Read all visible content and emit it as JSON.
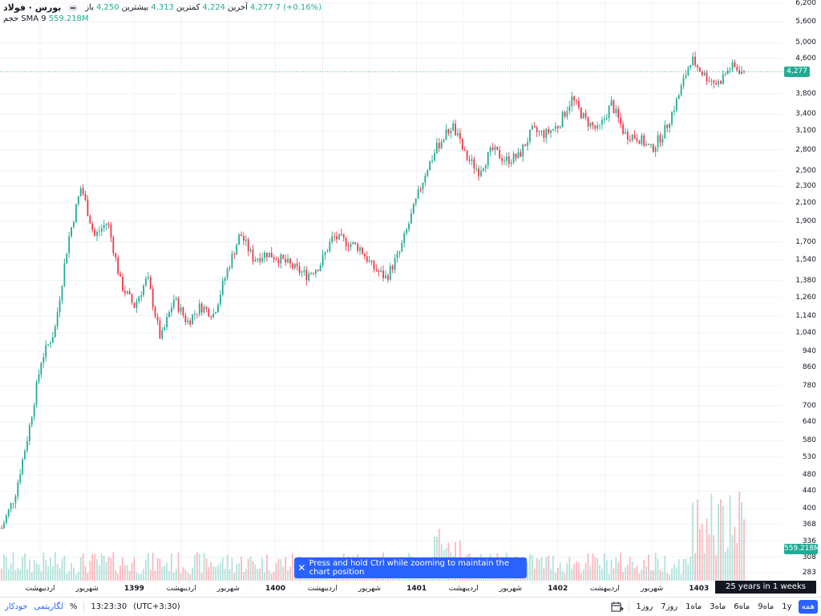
{
  "legend": {
    "symbol": "بورس · فولاد",
    "open_label": "باز",
    "open_value": "4,250",
    "high_label": "بیشترین",
    "high_value": "4,313",
    "low_label": "کمترین",
    "low_value": "4,224",
    "close_label": "آخرین",
    "close_value": "4,277",
    "change": "7 (+0.16%)",
    "volume_label": "حجم",
    "sma_label": "SMA 9",
    "sma_value": "559.218M"
  },
  "y_axis": {
    "ticks": [
      "6,200",
      "5,600",
      "5,000",
      "4,600",
      "3,800",
      "3,400",
      "3,100",
      "2,800",
      "2,500",
      "2,300",
      "2,100",
      "1,900",
      "1,700",
      "1,540",
      "1,380",
      "1,260",
      "1,140",
      "1,040",
      "940",
      "860",
      "780",
      "700",
      "640",
      "580",
      "530",
      "480",
      "440",
      "400",
      "368",
      "336",
      "308",
      "283"
    ],
    "current_price": "4,277",
    "current_volume": "559.218M"
  },
  "x_axis": {
    "labels": [
      "اردیبهشت",
      "شهریور",
      "1399",
      "اردیبهشت",
      "شهریور",
      "1400",
      "اردیبهشت",
      "شهریور",
      "1401",
      "اردیبهشت",
      "شهریور",
      "1402",
      "اردیبهشت",
      "شهریور",
      "1403"
    ],
    "year_labels": [
      "1399",
      "1400",
      "1401",
      "1402",
      "1403"
    ]
  },
  "interval_info": "25 years in 1 weeks intervals",
  "toast": {
    "message": "Press and hold Ctrl while zooming to maintain the chart position"
  },
  "bottom_bar": {
    "timezone": "(UTC+3:30)",
    "time": "13:23:30",
    "percent": "%",
    "log": "لگاریتمی",
    "auto": "خودکار",
    "timeframes": [
      "همه",
      "1y",
      "9ماه",
      "6ماه",
      "3ماه",
      "1ماه",
      "7روز",
      "1روز"
    ],
    "active_timeframe": "همه"
  },
  "colors": {
    "up": "#22ab94",
    "down": "#f23645",
    "accent": "#2962ff",
    "price_line": "#22ab94"
  },
  "icons": {
    "close": "close-icon",
    "goto_date": "calendar-goto-icon"
  },
  "chart_data": {
    "type": "candlestick",
    "scale": "log",
    "symbol": "بورس · فولاد",
    "interval": "1W",
    "last": {
      "open": 4250,
      "high": 4313,
      "low": 4224,
      "close": 4277,
      "change": 7,
      "change_pct": 0.16
    },
    "volume_sma9": "559.218M",
    "ylim": [
      283,
      6200
    ],
    "trend": [
      {
        "x": "1398-12",
        "y": 360
      },
      {
        "x": "1398-12",
        "y": 430
      },
      {
        "x": "1399-01",
        "y": 600
      },
      {
        "x": "1399-01",
        "y": 900
      },
      {
        "x": "1399-02",
        "y": 1050
      },
      {
        "x": "1399-03",
        "y": 1700
      },
      {
        "x": "1399-04",
        "y": 2300
      },
      {
        "x": "1399-04",
        "y": 1750
      },
      {
        "x": "1399-05",
        "y": 1900
      },
      {
        "x": "1399-06",
        "y": 1350
      },
      {
        "x": "1399-07",
        "y": 1200
      },
      {
        "x": "1399-08",
        "y": 1400
      },
      {
        "x": "1399-09",
        "y": 1000
      },
      {
        "x": "1399-10",
        "y": 1250
      },
      {
        "x": "1399-11",
        "y": 1100
      },
      {
        "x": "1399-12",
        "y": 1200
      },
      {
        "x": "1400-01",
        "y": 1150
      },
      {
        "x": "1400-02",
        "y": 1450
      },
      {
        "x": "1400-03",
        "y": 1780
      },
      {
        "x": "1400-04",
        "y": 1550
      },
      {
        "x": "1400-05",
        "y": 1600
      },
      {
        "x": "1400-06",
        "y": 1550
      },
      {
        "x": "1400-07",
        "y": 1480
      },
      {
        "x": "1400-08",
        "y": 1420
      },
      {
        "x": "1400-09",
        "y": 1500
      },
      {
        "x": "1400-10",
        "y": 1750
      },
      {
        "x": "1400-11",
        "y": 1700
      },
      {
        "x": "1400-12",
        "y": 1650
      },
      {
        "x": "1401-01",
        "y": 1480
      },
      {
        "x": "1401-02",
        "y": 1400
      },
      {
        "x": "1401-03",
        "y": 1600
      },
      {
        "x": "1401-04",
        "y": 2000
      },
      {
        "x": "1401-05",
        "y": 2500
      },
      {
        "x": "1401-06",
        "y": 2900
      },
      {
        "x": "1401-07",
        "y": 3200
      },
      {
        "x": "1401-08",
        "y": 2700
      },
      {
        "x": "1401-09",
        "y": 2500
      },
      {
        "x": "1401-10",
        "y": 2800
      },
      {
        "x": "1401-11",
        "y": 2650
      },
      {
        "x": "1401-12",
        "y": 2700
      },
      {
        "x": "1402-01",
        "y": 3100
      },
      {
        "x": "1402-02",
        "y": 3050
      },
      {
        "x": "1402-03",
        "y": 3200
      },
      {
        "x": "1402-04",
        "y": 3700
      },
      {
        "x": "1402-05",
        "y": 3300
      },
      {
        "x": "1402-06",
        "y": 3100
      },
      {
        "x": "1402-07",
        "y": 3600
      },
      {
        "x": "1402-08",
        "y": 3050
      },
      {
        "x": "1402-09",
        "y": 3000
      },
      {
        "x": "1402-10",
        "y": 2800
      },
      {
        "x": "1402-11",
        "y": 3100
      },
      {
        "x": "1402-12",
        "y": 3700
      },
      {
        "x": "1403-01",
        "y": 4600
      },
      {
        "x": "1403-02",
        "y": 4200
      },
      {
        "x": "1403-03",
        "y": 4000
      },
      {
        "x": "1403-04",
        "y": 4400
      },
      {
        "x": "1403-05",
        "y": 4277
      }
    ]
  }
}
